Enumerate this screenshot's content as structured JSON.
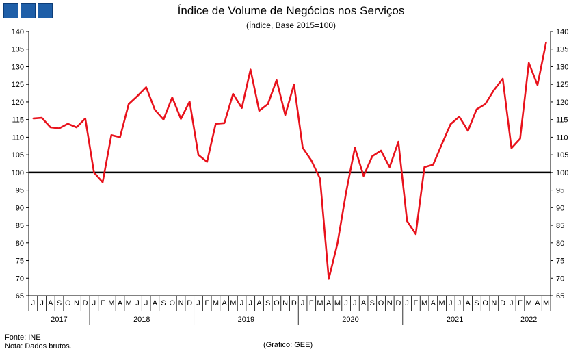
{
  "header": {
    "title": "Índice de Volume de Negócios nos Serviços",
    "subtitle": "(Índice, Base 2015=100)"
  },
  "footer": {
    "source": "Fonte: INE",
    "note": "Nota: Dados brutos.",
    "credit": "(Gráfico: GEE)"
  },
  "colors": {
    "line": "#e8121c",
    "reference": "#000000",
    "logo": "#1f5fa8"
  },
  "chart_data": {
    "type": "line",
    "title": "Índice de Volume de Negócios nos Serviços",
    "subtitle": "(Índice, Base 2015=100)",
    "ylim": [
      65,
      140
    ],
    "yticks": [
      65,
      70,
      75,
      80,
      85,
      90,
      95,
      100,
      105,
      110,
      115,
      120,
      125,
      130,
      135,
      140
    ],
    "reference_line": 100,
    "grid": false,
    "month_labels": [
      "J",
      "J",
      "A",
      "S",
      "O",
      "N",
      "D",
      "J",
      "F",
      "M",
      "A",
      "M",
      "J",
      "J",
      "A",
      "S",
      "O",
      "N",
      "D",
      "J",
      "F",
      "M",
      "A",
      "M",
      "J",
      "J",
      "A",
      "S",
      "O",
      "N",
      "D",
      "J",
      "F",
      "M",
      "A",
      "M",
      "J",
      "J",
      "A",
      "S",
      "O",
      "N",
      "D",
      "J",
      "F",
      "M",
      "A",
      "M",
      "J",
      "J",
      "A",
      "S",
      "O",
      "N",
      "D",
      "J",
      "F",
      "M",
      "A",
      "M"
    ],
    "year_groups": [
      {
        "label": "2017",
        "count": 7
      },
      {
        "label": "2018",
        "count": 12
      },
      {
        "label": "2019",
        "count": 12
      },
      {
        "label": "2020",
        "count": 12
      },
      {
        "label": "2021",
        "count": 12
      },
      {
        "label": "2022",
        "count": 5
      }
    ],
    "series": [
      {
        "values": [
          115.3,
          115.5,
          112.8,
          112.5,
          113.8,
          112.8,
          115.3,
          100,
          97.2,
          110.6,
          110,
          119.4,
          121.7,
          124.2,
          117.8,
          115,
          121.3,
          115.2,
          120.1,
          105,
          103,
          113.8,
          114,
          122.3,
          118.3,
          129.2,
          117.5,
          119.4,
          126.2,
          116.3,
          125,
          107,
          103.4,
          98.2,
          69.8,
          79.8,
          94.5,
          107,
          99,
          104.6,
          106.2,
          101.5,
          108.7,
          86.2,
          82.5,
          101.5,
          102.2,
          108,
          113.7,
          115.8,
          111.8,
          117.9,
          119.4,
          123.4,
          126.6,
          106.9,
          109.6,
          131.1,
          124.8,
          137
        ]
      }
    ]
  }
}
